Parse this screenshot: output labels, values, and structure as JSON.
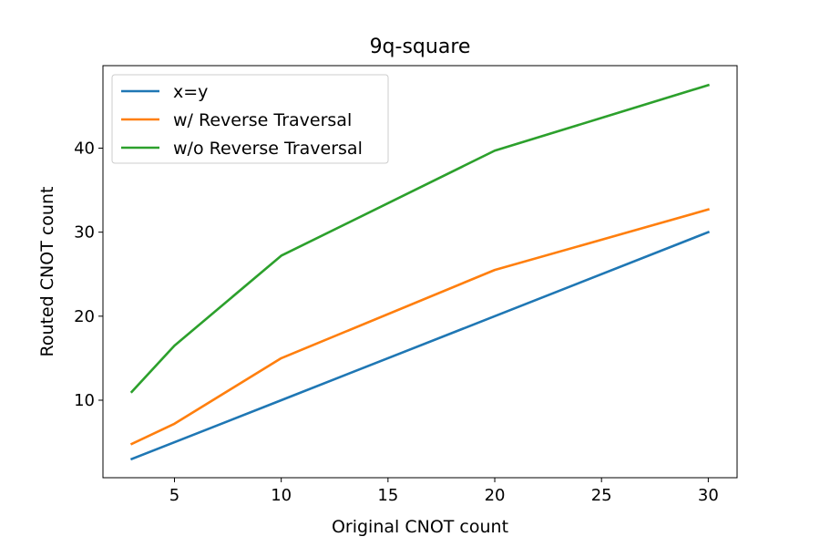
{
  "chart_data": {
    "type": "line",
    "title": "9q-square",
    "xlabel": "Original CNOT count",
    "ylabel": "Routed CNOT count",
    "xlim": [
      1.65,
      31.35
    ],
    "ylim": [
      0.775,
      49.82
    ],
    "xticks": [
      5,
      10,
      15,
      20,
      25,
      30
    ],
    "yticks": [
      10,
      20,
      30,
      40
    ],
    "grid": false,
    "legend_position": "top-left",
    "x": [
      3,
      5,
      10,
      20,
      30
    ],
    "series": [
      {
        "name": "x=y",
        "color": "#1f77b4",
        "values": [
          3,
          5,
          10,
          20,
          30
        ]
      },
      {
        "name": "w/ Reverse Traversal",
        "color": "#ff7f0e",
        "values": [
          4.8,
          7.2,
          15.0,
          25.5,
          32.7
        ]
      },
      {
        "name": "w/o Reverse Traversal",
        "color": "#2ca02c",
        "values": [
          11.0,
          16.5,
          27.2,
          39.7,
          47.5
        ]
      }
    ]
  }
}
